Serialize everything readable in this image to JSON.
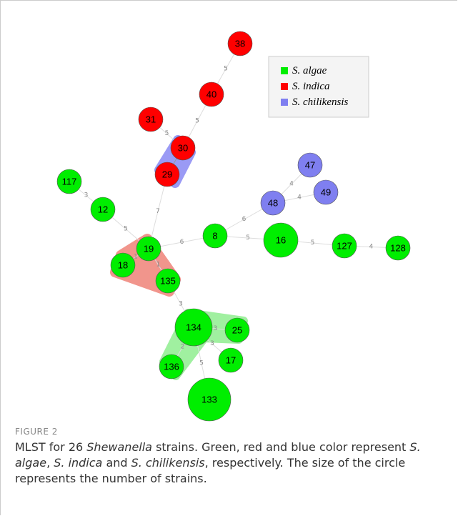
{
  "figure": {
    "nodes": [
      {
        "label": "38",
        "color": "#ff0000"
      },
      {
        "label": "40",
        "color": "#ff0000"
      },
      {
        "label": "31",
        "color": "#ff0000"
      },
      {
        "label": "30",
        "color": "#ff0000"
      },
      {
        "label": "29",
        "color": "#ff0000"
      },
      {
        "label": "117",
        "color": "#00ee00"
      },
      {
        "label": "12",
        "color": "#00ee00"
      },
      {
        "label": "47",
        "color": "#7f7ff0"
      },
      {
        "label": "49",
        "color": "#7f7ff0"
      },
      {
        "label": "48",
        "color": "#7f7ff0"
      },
      {
        "label": "8",
        "color": "#00ee00"
      },
      {
        "label": "16",
        "color": "#00ee00"
      },
      {
        "label": "127",
        "color": "#00ee00"
      },
      {
        "label": "128",
        "color": "#00ee00"
      },
      {
        "label": "19",
        "color": "#00ee00"
      },
      {
        "label": "18",
        "color": "#00ee00"
      },
      {
        "label": "135",
        "color": "#00ee00"
      },
      {
        "label": "134",
        "color": "#00ee00"
      },
      {
        "label": "25",
        "color": "#00ee00"
      },
      {
        "label": "17",
        "color": "#00ee00"
      },
      {
        "label": "136",
        "color": "#00ee00"
      },
      {
        "label": "133",
        "color": "#00ee00"
      }
    ],
    "edges": [
      {
        "label": "5"
      },
      {
        "label": "5"
      },
      {
        "label": "5"
      },
      {
        "label": "7"
      },
      {
        "label": "3"
      },
      {
        "label": "5"
      },
      {
        "label": "6"
      },
      {
        "label": "6"
      },
      {
        "label": "4"
      },
      {
        "label": "4"
      },
      {
        "label": "5"
      },
      {
        "label": "5"
      },
      {
        "label": "4"
      },
      {
        "label": "1"
      },
      {
        "label": "1"
      },
      {
        "label": "3"
      },
      {
        "label": "3"
      },
      {
        "label": "3"
      },
      {
        "label": "2"
      },
      {
        "label": "5"
      }
    ],
    "legend": [
      {
        "label": "S. algae",
        "color": "#00ee00"
      },
      {
        "label": "S. indica",
        "color": "#ff0000"
      },
      {
        "label": "S. chilikensis",
        "color": "#7f7ff0"
      }
    ]
  },
  "caption": {
    "label": "FIGURE 2",
    "parts": [
      "MLST for 26 ",
      "Shewanella",
      " strains. Green, red and blue color represent ",
      "S. algae",
      ", ",
      "S. indica",
      " and ",
      "S. chilikensis",
      ", respectively. The size of the circle represents the number of strains."
    ]
  }
}
